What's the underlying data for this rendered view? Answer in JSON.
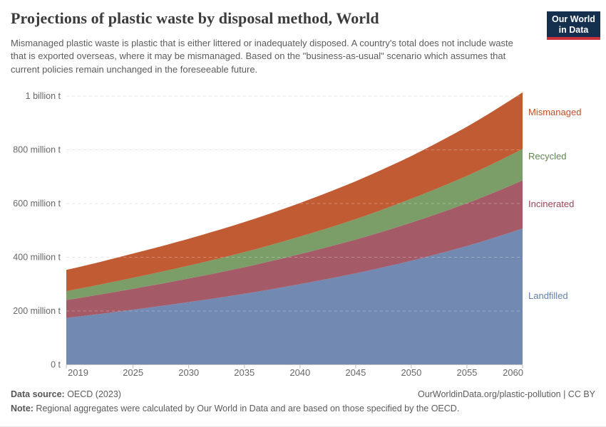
{
  "header": {
    "title": "Projections of plastic waste by disposal method, World",
    "subtitle": "Mismanaged plastic waste is plastic that is either littered or inadequately disposed. A country's total does not include waste that is exported overseas, where it may be mismanaged. Based on the \"business-as-usual\" scenario which assumes that current policies remain unchanged in the foreseeable future.",
    "logo": {
      "line1": "Our World",
      "line2": "in Data",
      "bg_color": "#15304e",
      "accent_color": "#c9313d"
    }
  },
  "footer": {
    "source_label": "Data source:",
    "source_value": " OECD (2023)",
    "link": "OurWorldinData.org/plastic-pollution | CC BY",
    "note_label": "Note:",
    "note_value": " Regional aggregates were calculated by Our World in Data and are based on those specified by the OECD."
  },
  "chart_data": {
    "type": "area",
    "stacked": true,
    "title": "Projections of plastic waste by disposal method, World",
    "unit": "tonnes",
    "grid": true,
    "legend_position": "right",
    "xlim": [
      2019,
      2060
    ],
    "ylim": [
      0,
      1000
    ],
    "x": [
      2019,
      2025,
      2030,
      2035,
      2040,
      2045,
      2050,
      2055,
      2060
    ],
    "x_tick_labels": [
      "2019",
      "2025",
      "2030",
      "2035",
      "2040",
      "2045",
      "2050",
      "2055",
      "2060"
    ],
    "y_ticks": [
      {
        "value": 0,
        "label": "0 t"
      },
      {
        "value": 200,
        "label": "200 million t"
      },
      {
        "value": 400,
        "label": "400 million t"
      },
      {
        "value": 600,
        "label": "600 million t"
      },
      {
        "value": 800,
        "label": "800 million t"
      },
      {
        "value": 1000,
        "label": "1 billion t"
      }
    ],
    "value_unit_note": "values in million tonnes per year",
    "series": [
      {
        "name": "Landfilled",
        "values": [
          174,
          205,
          233,
          264,
          300,
          340,
          387,
          442,
          507
        ],
        "color": "#7289b2",
        "label_color": "#6180ae"
      },
      {
        "name": "Incinerated",
        "values": [
          67,
          78,
          88,
          99,
          112,
          126,
          142,
          159,
          179
        ],
        "color": "#a55a67",
        "label_color": "#9a4455"
      },
      {
        "name": "Recycled",
        "values": [
          33,
          41,
          48,
          56,
          65,
          76,
          89,
          102,
          117
        ],
        "color": "#7b9e68",
        "label_color": "#5f8450"
      },
      {
        "name": "Mismanaged",
        "values": [
          79,
          90,
          100,
          112,
          125,
          141,
          159,
          183,
          211
        ],
        "color": "#c05b33",
        "label_color": "#c14f27"
      }
    ],
    "totals_by_anchor_year": [
      353,
      414,
      469,
      531,
      602,
      683,
      777,
      886,
      1014
    ]
  },
  "colors": {
    "grid": "#dddddd",
    "axis_line": "#c4c4c4",
    "tick_mark": "#b8b8b8",
    "axis_text": "#676767"
  }
}
